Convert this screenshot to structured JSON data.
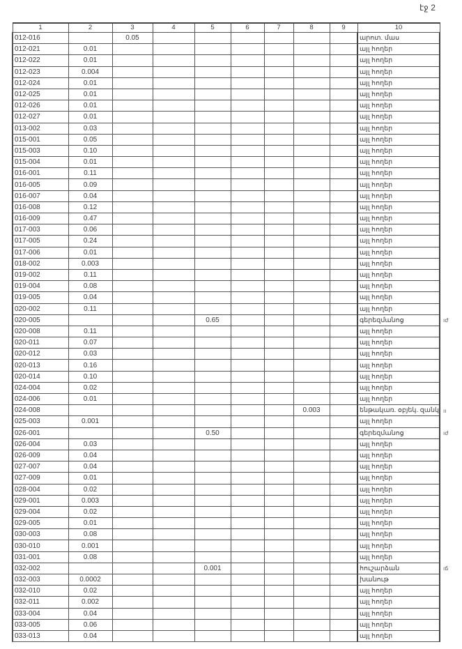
{
  "page_label": "էջ 2",
  "headers": [
    "1",
    "2",
    "3",
    "4",
    "5",
    "6",
    "7",
    "8",
    "9",
    "10"
  ],
  "rows": [
    [
      "012-016",
      "",
      "0.05",
      "",
      "",
      "",
      "",
      "",
      "",
      "արոտ. մաս"
    ],
    [
      "012-021",
      "0.01",
      "",
      "",
      "",
      "",
      "",
      "",
      "",
      "այլ հողեր"
    ],
    [
      "012-022",
      "0.01",
      "",
      "",
      "",
      "",
      "",
      "",
      "",
      "այլ հողեր"
    ],
    [
      "012-023",
      "0.004",
      "",
      "",
      "",
      "",
      "",
      "",
      "",
      "այլ հողեր"
    ],
    [
      "012-024",
      "0.01",
      "",
      "",
      "",
      "",
      "",
      "",
      "",
      "այլ հողեր"
    ],
    [
      "012-025",
      "0.01",
      "",
      "",
      "",
      "",
      "",
      "",
      "",
      "այլ հողեր"
    ],
    [
      "012-026",
      "0.01",
      "",
      "",
      "",
      "",
      "",
      "",
      "",
      "այլ հողեր"
    ],
    [
      "012-027",
      "0.01",
      "",
      "",
      "",
      "",
      "",
      "",
      "",
      "այլ հողեր"
    ],
    [
      "013-002",
      "0.03",
      "",
      "",
      "",
      "",
      "",
      "",
      "",
      "այլ հողեր"
    ],
    [
      "015-001",
      "0.05",
      "",
      "",
      "",
      "",
      "",
      "",
      "",
      "այլ հողեր"
    ],
    [
      "015-003",
      "0.10",
      "",
      "",
      "",
      "",
      "",
      "",
      "",
      "այլ հողեր"
    ],
    [
      "015-004",
      "0.01",
      "",
      "",
      "",
      "",
      "",
      "",
      "",
      "այլ հողեր"
    ],
    [
      "016-001",
      "0.11",
      "",
      "",
      "",
      "",
      "",
      "",
      "",
      "այլ հողեր"
    ],
    [
      "016-005",
      "0.09",
      "",
      "",
      "",
      "",
      "",
      "",
      "",
      "այլ հողեր"
    ],
    [
      "016-007",
      "0.04",
      "",
      "",
      "",
      "",
      "",
      "",
      "",
      "այլ հողեր"
    ],
    [
      "016-008",
      "0.12",
      "",
      "",
      "",
      "",
      "",
      "",
      "",
      "այլ հողեր"
    ],
    [
      "016-009",
      "0.47",
      "",
      "",
      "",
      "",
      "",
      "",
      "",
      "այլ հողեր"
    ],
    [
      "017-003",
      "0.06",
      "",
      "",
      "",
      "",
      "",
      "",
      "",
      "այլ հողեր"
    ],
    [
      "017-005",
      "0.24",
      "",
      "",
      "",
      "",
      "",
      "",
      "",
      "այլ հողեր"
    ],
    [
      "017-006",
      "0.01",
      "",
      "",
      "",
      "",
      "",
      "",
      "",
      "այլ հողեր"
    ],
    [
      "018-002",
      "0.003",
      "",
      "",
      "",
      "",
      "",
      "",
      "",
      "այլ հողեր"
    ],
    [
      "019-002",
      "0.11",
      "",
      "",
      "",
      "",
      "",
      "",
      "",
      "այլ հողեր"
    ],
    [
      "019-004",
      "0.08",
      "",
      "",
      "",
      "",
      "",
      "",
      "",
      "այլ հողեր"
    ],
    [
      "019-005",
      "0.04",
      "",
      "",
      "",
      "",
      "",
      "",
      "",
      "այլ հողեր"
    ],
    [
      "020-002",
      "0.11",
      "",
      "",
      "",
      "",
      "",
      "",
      "",
      "այլ հողեր"
    ],
    [
      "020-005",
      "",
      "",
      "",
      "0.65",
      "",
      "",
      "",
      "",
      "գերեզմանոց"
    ],
    [
      "020-008",
      "0.11",
      "",
      "",
      "",
      "",
      "",
      "",
      "",
      "այլ հողեր"
    ],
    [
      "020-011",
      "0.07",
      "",
      "",
      "",
      "",
      "",
      "",
      "",
      "այլ հողեր"
    ],
    [
      "020-012",
      "0.03",
      "",
      "",
      "",
      "",
      "",
      "",
      "",
      "այլ հողեր"
    ],
    [
      "020-013",
      "0.16",
      "",
      "",
      "",
      "",
      "",
      "",
      "",
      "այլ հողեր"
    ],
    [
      "020-014",
      "0.10",
      "",
      "",
      "",
      "",
      "",
      "",
      "",
      "այլ հողեր"
    ],
    [
      "024-004",
      "0.02",
      "",
      "",
      "",
      "",
      "",
      "",
      "",
      "այլ հողեր"
    ],
    [
      "024-006",
      "0.01",
      "",
      "",
      "",
      "",
      "",
      "",
      "",
      "այլ հողեր"
    ],
    [
      "024-008",
      "",
      "",
      "",
      "",
      "",
      "",
      "0.003",
      "",
      "ենթակառ. օբյեկ. զանկ"
    ],
    [
      "025-003",
      "0.001",
      "",
      "",
      "",
      "",
      "",
      "",
      "",
      "այլ հողեր"
    ],
    [
      "026-001",
      "",
      "",
      "",
      "0.50",
      "",
      "",
      "",
      "",
      "գերեզմանոց"
    ],
    [
      "026-004",
      "0.03",
      "",
      "",
      "",
      "",
      "",
      "",
      "",
      "այլ հողեր"
    ],
    [
      "026-009",
      "0.04",
      "",
      "",
      "",
      "",
      "",
      "",
      "",
      "այլ հողեր"
    ],
    [
      "027-007",
      "0.04",
      "",
      "",
      "",
      "",
      "",
      "",
      "",
      "այլ հողեր"
    ],
    [
      "027-009",
      "0.01",
      "",
      "",
      "",
      "",
      "",
      "",
      "",
      "այլ հողեր"
    ],
    [
      "028-004",
      "0.02",
      "",
      "",
      "",
      "",
      "",
      "",
      "",
      "այլ հողեր"
    ],
    [
      "029-001",
      "0.003",
      "",
      "",
      "",
      "",
      "",
      "",
      "",
      "այլ հողեր"
    ],
    [
      "029-004",
      "0.02",
      "",
      "",
      "",
      "",
      "",
      "",
      "",
      "այլ հողեր"
    ],
    [
      "029-005",
      "0.01",
      "",
      "",
      "",
      "",
      "",
      "",
      "",
      "այլ հողեր"
    ],
    [
      "030-003",
      "0.08",
      "",
      "",
      "",
      "",
      "",
      "",
      "",
      "այլ հողեր"
    ],
    [
      "030-010",
      "0.001",
      "",
      "",
      "",
      "",
      "",
      "",
      "",
      "այլ հողեր"
    ],
    [
      "031-001",
      "0.08",
      "",
      "",
      "",
      "",
      "",
      "",
      "",
      "այլ հողեր"
    ],
    [
      "032-002",
      "",
      "",
      "",
      "0.001",
      "",
      "",
      "",
      "",
      "հուշարձան"
    ],
    [
      "032-003",
      "0.0002",
      "",
      "",
      "",
      "",
      "",
      "",
      "",
      "խանութ"
    ],
    [
      "032-010",
      "0.02",
      "",
      "",
      "",
      "",
      "",
      "",
      "",
      "այլ հողեր"
    ],
    [
      "032-011",
      "0.002",
      "",
      "",
      "",
      "",
      "",
      "",
      "",
      "այլ հողեր"
    ],
    [
      "033-004",
      "0.04",
      "",
      "",
      "",
      "",
      "",
      "",
      "",
      "այլ հողեր"
    ],
    [
      "033-005",
      "0.06",
      "",
      "",
      "",
      "",
      "",
      "",
      "",
      "այլ հողեր"
    ],
    [
      "033-013",
      "0.04",
      "",
      "",
      "",
      "",
      "",
      "",
      "",
      "այլ հողեր"
    ]
  ],
  "margin_notes": [
    {
      "row": 25,
      "text": "ıժ"
    },
    {
      "row": 33,
      "text": "ıı"
    },
    {
      "row": 35,
      "text": "ıժ"
    },
    {
      "row": 47,
      "text": "ıճ"
    }
  ]
}
